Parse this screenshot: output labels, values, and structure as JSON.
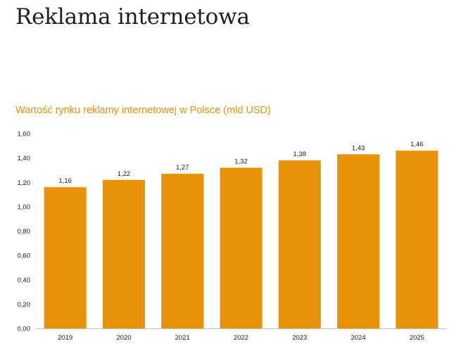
{
  "page": {
    "title": "Reklama internetowa"
  },
  "chart_data": {
    "type": "bar",
    "title": "Wartość rynku reklamy internetowej w Polsce (mld USD)",
    "categories": [
      "2019",
      "2020",
      "2021",
      "2022",
      "2023",
      "2024",
      "2025"
    ],
    "values": [
      1.16,
      1.22,
      1.27,
      1.32,
      1.38,
      1.43,
      1.46
    ],
    "value_labels": [
      "1,16",
      "1,22",
      "1,27",
      "1,32",
      "1,38",
      "1,43",
      "1,46"
    ],
    "y_ticks": [
      "0,00",
      "0,20",
      "0,40",
      "0,60",
      "0,80",
      "1,00",
      "1,20",
      "1,40",
      "1,60"
    ],
    "ylim": [
      0,
      1.6
    ],
    "xlabel": "",
    "ylabel": "",
    "grid": false,
    "legend": "none",
    "bar_color": "#e8920a",
    "title_color": "#e8920a"
  }
}
